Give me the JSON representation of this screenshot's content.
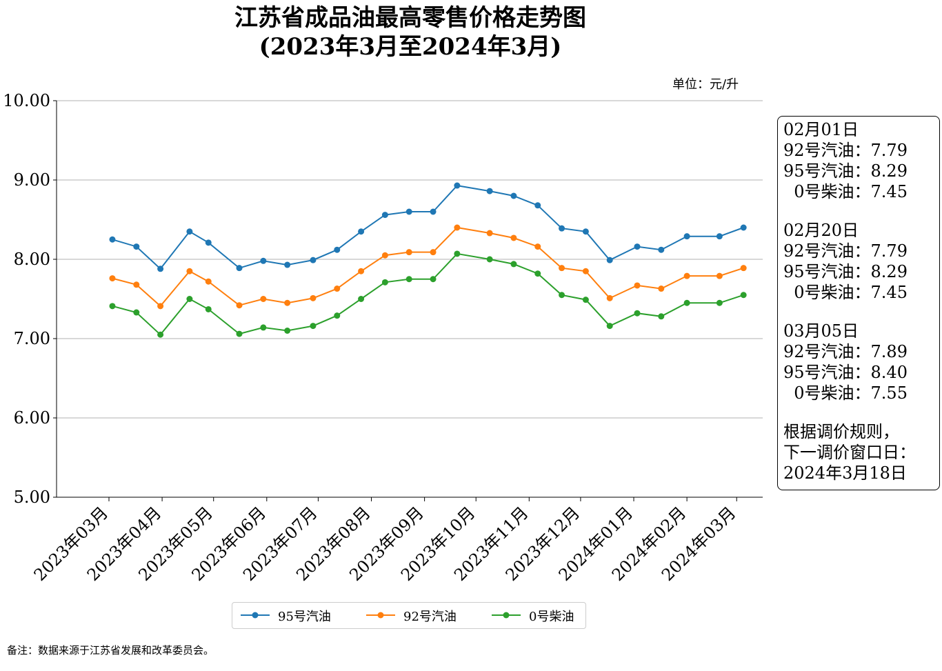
{
  "chart_data": {
    "type": "line",
    "title": "江苏省成品油最高零售价格走势图",
    "subtitle": "(2023年3月至2024年3月)",
    "unit_label": "单位：元/升",
    "ylim": [
      5.0,
      10.0
    ],
    "yticks": [
      "5.00",
      "6.00",
      "7.00",
      "8.00",
      "9.00",
      "10.00"
    ],
    "xtick_labels": [
      "2023年03月",
      "2023年04月",
      "2023年05月",
      "2023年06月",
      "2023年07月",
      "2023年08月",
      "2023年09月",
      "2023年10月",
      "2023年11月",
      "2023年12月",
      "2024年01月",
      "2024年02月",
      "2024年03月"
    ],
    "x": [
      "2023-03-03",
      "2023-03-17",
      "2023-03-31",
      "2023-04-17",
      "2023-04-28",
      "2023-05-16",
      "2023-05-30",
      "2023-06-13",
      "2023-06-28",
      "2023-07-12",
      "2023-07-26",
      "2023-08-09",
      "2023-08-23",
      "2023-09-06",
      "2023-09-20",
      "2023-10-09",
      "2023-10-23",
      "2023-11-06",
      "2023-11-20",
      "2023-12-04",
      "2023-12-18",
      "2024-01-03",
      "2024-01-17",
      "2024-02-01",
      "2024-02-20",
      "2024-03-05"
    ],
    "series": [
      {
        "name": "95号汽油",
        "color": "#1f77b4",
        "values": [
          8.25,
          8.16,
          7.88,
          8.35,
          8.21,
          7.89,
          7.98,
          7.93,
          7.99,
          8.12,
          8.35,
          8.56,
          8.6,
          8.6,
          8.93,
          8.86,
          8.8,
          8.68,
          8.39,
          8.35,
          7.99,
          8.16,
          8.12,
          8.29,
          8.29,
          8.4
        ]
      },
      {
        "name": "92号汽油",
        "color": "#ff7f0e",
        "values": [
          7.76,
          7.68,
          7.41,
          7.85,
          7.72,
          7.42,
          7.5,
          7.45,
          7.51,
          7.63,
          7.85,
          8.05,
          8.09,
          8.09,
          8.4,
          8.33,
          8.27,
          8.16,
          7.89,
          7.85,
          7.51,
          7.67,
          7.63,
          7.79,
          7.79,
          7.89
        ]
      },
      {
        "name": "0号柴油",
        "color": "#2ca02c",
        "values": [
          7.41,
          7.33,
          7.05,
          7.5,
          7.37,
          7.06,
          7.14,
          7.1,
          7.16,
          7.29,
          7.5,
          7.71,
          7.75,
          7.75,
          8.07,
          8.0,
          7.94,
          7.82,
          7.55,
          7.49,
          7.16,
          7.32,
          7.28,
          7.45,
          7.45,
          7.55
        ]
      }
    ],
    "grid": "horizontal",
    "legend_placement": "bottom-center"
  },
  "annotation": {
    "blocks": [
      {
        "date": "02月01日",
        "lines": [
          "92号汽油：7.79",
          "95号汽油：8.29",
          "  0号柴油：7.45"
        ]
      },
      {
        "date": "02月20日",
        "lines": [
          "92号汽油：7.79",
          "95号汽油：8.29",
          "  0号柴油：7.45"
        ]
      },
      {
        "date": "03月05日",
        "lines": [
          "92号汽油：7.89",
          "95号汽油：8.40",
          "  0号柴油：7.55"
        ]
      }
    ],
    "rule_lines": [
      "根据调价规则，",
      "下一调价窗口日：",
      "2024年3月18日"
    ]
  },
  "legend": [
    "95号汽油",
    "92号汽油",
    "0号柴油"
  ],
  "note": "备注：数据来源于江苏省发展和改革委员会。"
}
